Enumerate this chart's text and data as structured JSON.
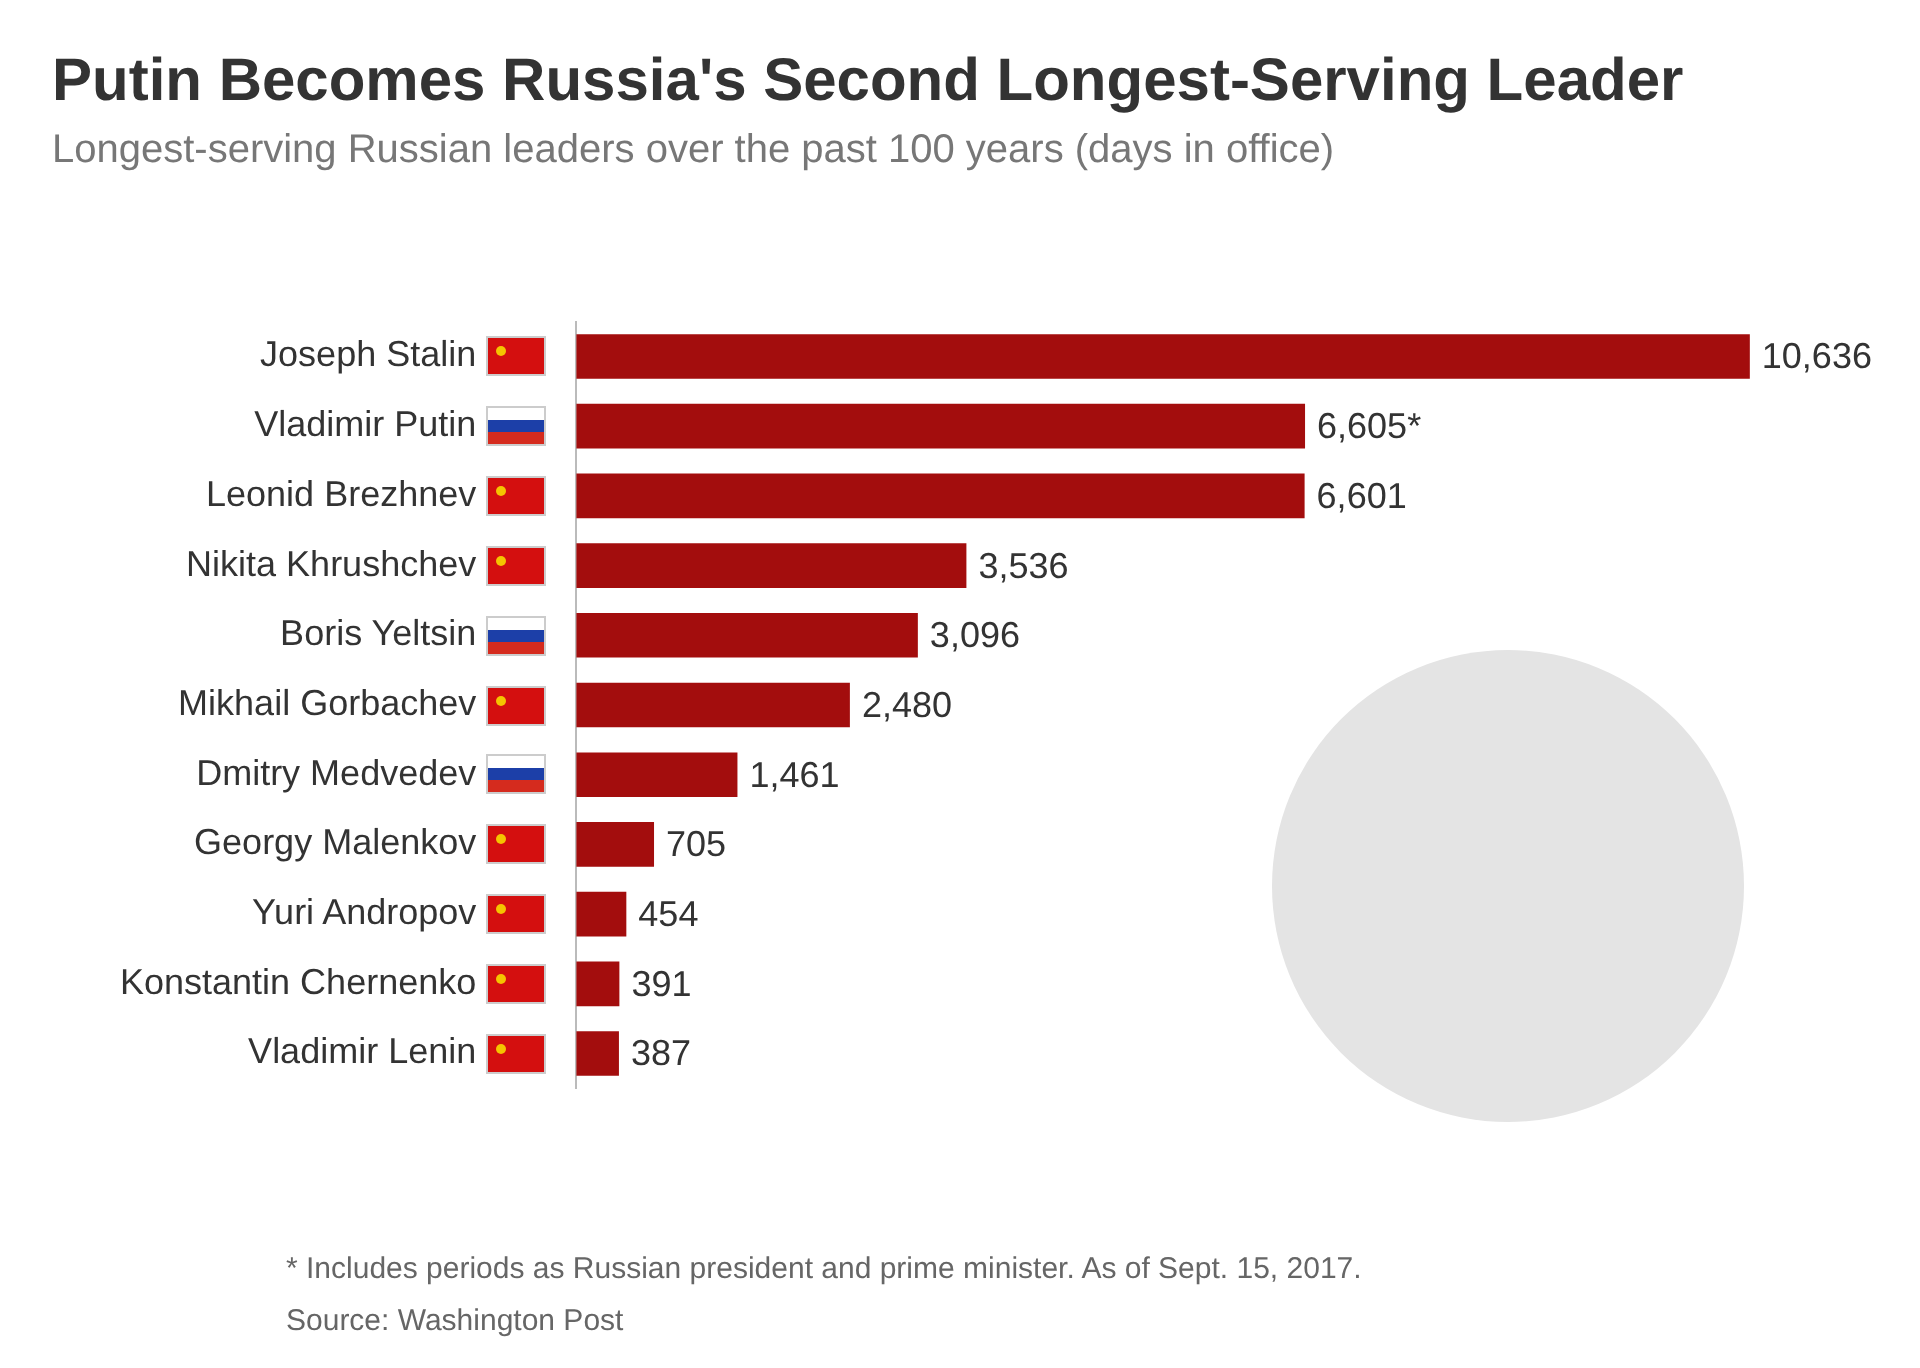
{
  "chart_data": {
    "type": "bar",
    "orientation": "horizontal",
    "title": "Putin Becomes Russia's Second Longest-Serving Leader",
    "subtitle": "Longest-serving Russian leaders over the past 100 years (days in office)",
    "categories": [
      "Joseph Stalin",
      "Vladimir Putin",
      "Leonid Brezhnev",
      "Nikita Khrushchev",
      "Boris Yeltsin",
      "Mikhail Gorbachev",
      "Dmitry Medvedev",
      "Georgy Malenkov",
      "Yuri Andropov",
      "Konstantin Chernenko",
      "Vladimir Lenin"
    ],
    "values": [
      10636,
      6605,
      6601,
      3536,
      3096,
      2480,
      1461,
      705,
      454,
      391,
      387
    ],
    "value_labels": [
      "10,636",
      "6,605*",
      "6,601",
      "3,536",
      "3,096",
      "2,480",
      "1,461",
      "705",
      "454",
      "391",
      "387"
    ],
    "color": "#a30d0d",
    "grid": false,
    "legend": false,
    "tick_labels": "y",
    "annotations": [
      "* Includes periods as Russian president and prime minister. As of Sept. 15, 2017.",
      "Source: Washington Post"
    ]
  }
}
